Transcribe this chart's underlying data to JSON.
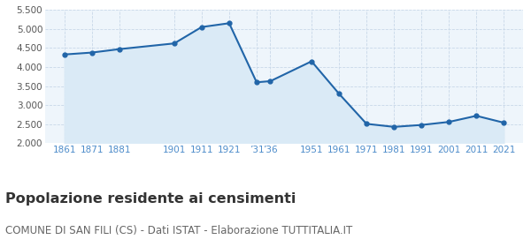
{
  "years": [
    1861,
    1871,
    1881,
    1901,
    1911,
    1921,
    1931,
    1936,
    1951,
    1961,
    1971,
    1981,
    1991,
    2001,
    2011,
    2021
  ],
  "population": [
    4330,
    4380,
    4470,
    4620,
    5050,
    5150,
    3600,
    3630,
    4150,
    3300,
    2510,
    2430,
    2480,
    2560,
    2720,
    2540
  ],
  "x_tick_positions": [
    1861,
    1871,
    1881,
    1901,
    1911,
    1921,
    1931,
    1936,
    1951,
    1961,
    1971,
    1981,
    1991,
    2001,
    2011,
    2021
  ],
  "x_tick_labels": [
    "1861",
    "1871",
    "1881",
    "1901",
    "1911",
    "1921",
    "’31",
    "’36",
    "1951",
    "1961",
    "1971",
    "1981",
    "1991",
    "2001",
    "2011",
    "2021"
  ],
  "ylim": [
    2000,
    5500
  ],
  "yticks": [
    2000,
    2500,
    3000,
    3500,
    4000,
    4500,
    5000,
    5500
  ],
  "line_color": "#2165a8",
  "fill_color": "#daeaf6",
  "grid_color": "#c8d8e8",
  "background_color": "#ffffff",
  "plot_bg_color": "#eef5fb",
  "title": "Popolazione residente ai censimenti",
  "subtitle": "COMUNE DI SAN FILI (CS) - Dati ISTAT - Elaborazione TUTTITALIA.IT",
  "title_fontsize": 11.5,
  "subtitle_fontsize": 8.5,
  "tick_fontsize": 7.5,
  "ytick_fontsize": 7.5,
  "tick_color": "#4d8cca",
  "ytick_color": "#555555",
  "xlim_left": 1854,
  "xlim_right": 2028
}
